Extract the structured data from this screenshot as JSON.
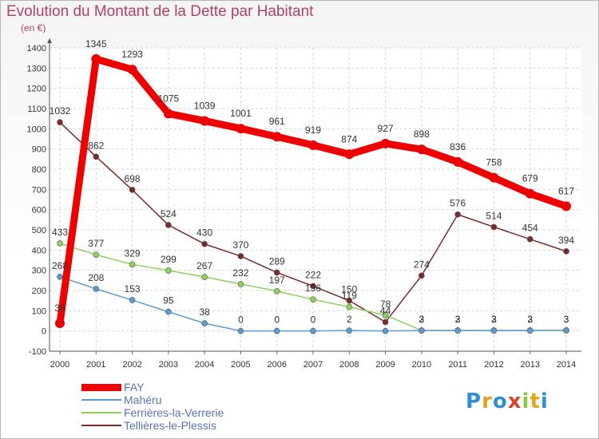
{
  "title": "Evolution du Montant de la Dette par Habitant",
  "subtitle": "(en €)",
  "logo": {
    "letters": [
      "P",
      "r",
      "o",
      "x",
      "i",
      "t",
      "i"
    ],
    "colors": [
      "#2e8fd6",
      "#e8a21c",
      "#2e8fd6",
      "#d9442b",
      "#8cc63f",
      "#e8a21c",
      "#2e8fd6"
    ]
  },
  "chart_data": {
    "type": "line",
    "title": "Evolution du Montant de la Dette par Habitant",
    "ylabel": "(en €)",
    "x": [
      "2000",
      "2001",
      "2002",
      "2003",
      "2004",
      "2005",
      "2006",
      "2007",
      "2008",
      "2009",
      "2010",
      "2011",
      "2012",
      "2013",
      "2014"
    ],
    "ylim": [
      -100,
      1400
    ],
    "yticks": [
      "-100",
      "0",
      "100",
      "200",
      "300",
      "400",
      "500",
      "600",
      "700",
      "800",
      "900",
      "1000",
      "1100",
      "1200",
      "1300",
      "1400"
    ],
    "grid": true,
    "legend_position": "bottom-left",
    "series": [
      {
        "name": "FAY",
        "color": "#ee0000",
        "width": 9,
        "r": 6,
        "values": [
          38,
          1345,
          1293,
          1075,
          1039,
          1001,
          961,
          919,
          874,
          927,
          898,
          836,
          758,
          679,
          617
        ],
        "labels": [
          "38",
          "1345",
          "1293",
          "1075",
          "1039",
          "1001",
          "961",
          "919",
          "874",
          "927",
          "898",
          "836",
          "758",
          "679",
          "617"
        ]
      },
      {
        "name": "Mahéru",
        "color": "#5b9bd5",
        "width": 1.5,
        "r": 3.5,
        "values": [
          268,
          208,
          153,
          95,
          38,
          0,
          0,
          0,
          2,
          0,
          2,
          2,
          2,
          2,
          3
        ],
        "labels": [
          "268",
          "208",
          "153",
          "95",
          "38",
          "0",
          "0",
          "0",
          "2",
          "",
          "2",
          "2",
          "2",
          "2",
          "3"
        ]
      },
      {
        "name": "Ferrières-la-Verrerie",
        "color": "#8ed25c",
        "width": 1.5,
        "r": 3.5,
        "values": [
          433,
          377,
          329,
          299,
          267,
          232,
          197,
          156,
          119,
          78,
          3,
          3,
          3,
          3,
          3
        ],
        "labels": [
          "433",
          "377",
          "329",
          "299",
          "267",
          "232",
          "197",
          "156",
          "119",
          "78",
          "3",
          "3",
          "3",
          "3",
          "3"
        ]
      },
      {
        "name": "Tellières-le-Plessis",
        "color": "#7a2a2a",
        "width": 1.5,
        "r": 3.5,
        "values": [
          1032,
          862,
          698,
          524,
          430,
          370,
          289,
          222,
          150,
          44,
          274,
          576,
          514,
          454,
          394
        ],
        "labels": [
          "1032",
          "862",
          "698",
          "524",
          "430",
          "370",
          "289",
          "222",
          "150",
          "44",
          "274",
          "576",
          "514",
          "454",
          "394"
        ]
      }
    ]
  }
}
